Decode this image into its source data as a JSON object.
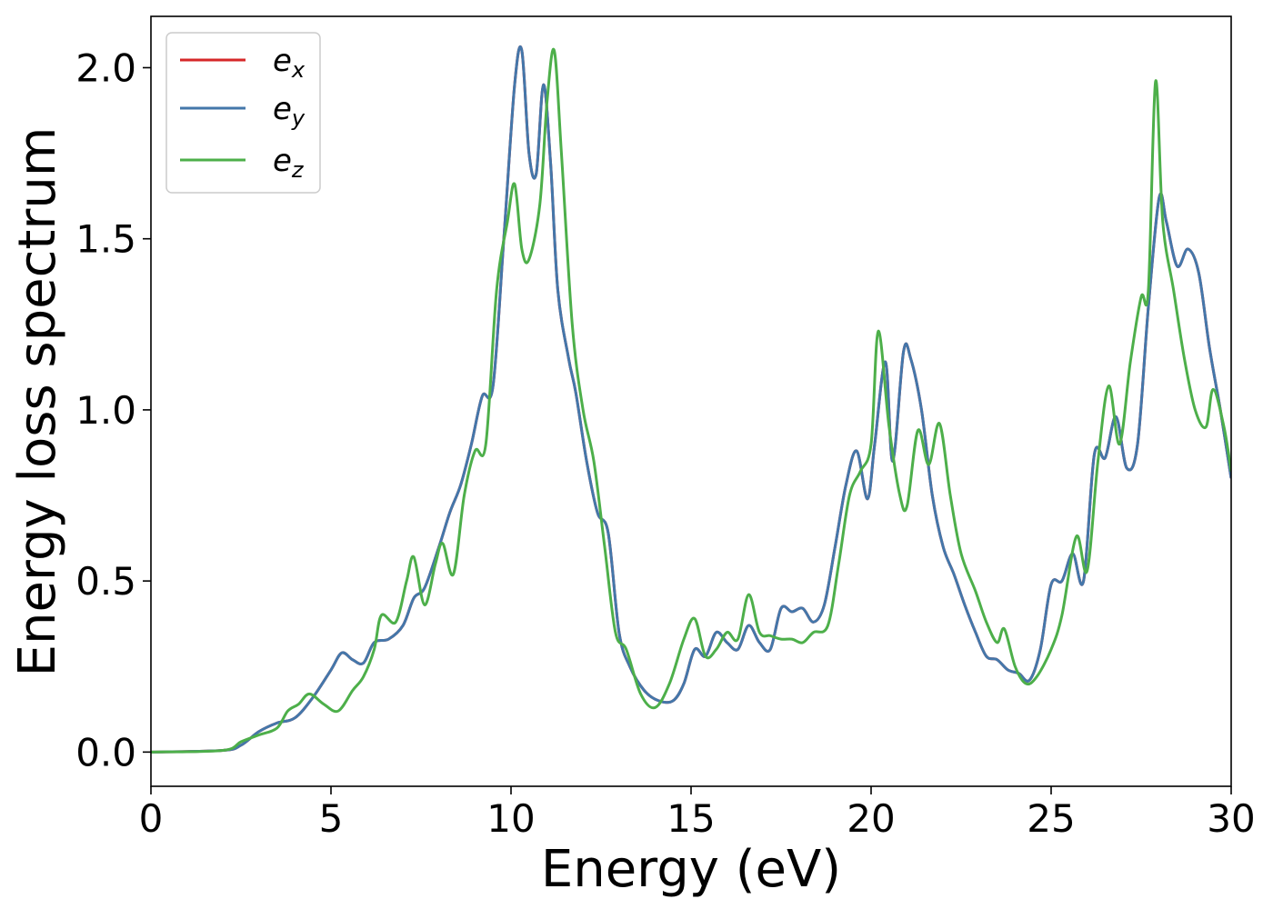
{
  "chart_data": {
    "type": "line",
    "title": "",
    "xlabel": "Energy (eV)",
    "ylabel": "Energy loss spectrum",
    "xlim": [
      0,
      30
    ],
    "ylim": [
      -0.1,
      2.15
    ],
    "xticks": [
      0,
      5,
      10,
      15,
      20,
      25,
      30
    ],
    "xtick_labels": [
      "0",
      "5",
      "10",
      "15",
      "20",
      "25",
      "30"
    ],
    "yticks": [
      0.0,
      0.5,
      1.0,
      1.5,
      2.0
    ],
    "ytick_labels": [
      "0.0",
      "0.5",
      "1.0",
      "1.5",
      "2.0"
    ],
    "grid": false,
    "legend_position": "top-left",
    "series": [
      {
        "name": "e_x",
        "label_base": "e",
        "label_sub": "x",
        "color": "#d62728",
        "x": [
          0,
          2,
          2.5,
          3,
          3.5,
          4,
          4.5,
          5,
          5.3,
          5.6,
          5.9,
          6.2,
          6.6,
          7,
          7.3,
          7.6,
          8,
          8.3,
          8.6,
          8.9,
          9.2,
          9.5,
          9.8,
          10.1,
          10.3,
          10.5,
          10.7,
          10.9,
          11.1,
          11.3,
          11.6,
          11.8,
          12.1,
          12.4,
          12.7,
          13,
          13.3,
          13.7,
          14.1,
          14.5,
          14.8,
          15.1,
          15.4,
          15.7,
          16,
          16.3,
          16.6,
          16.9,
          17.2,
          17.5,
          17.8,
          18.1,
          18.4,
          18.7,
          19,
          19.3,
          19.6,
          19.9,
          20.1,
          20.4,
          20.6,
          20.9,
          21.1,
          21.4,
          21.7,
          22,
          22.3,
          22.6,
          22.9,
          23.2,
          23.5,
          23.8,
          24.1,
          24.4,
          24.7,
          25,
          25.3,
          25.6,
          25.9,
          26.2,
          26.5,
          26.8,
          27.1,
          27.4,
          27.7,
          28,
          28.2,
          28.5,
          28.8,
          29.1,
          29.4,
          29.7,
          30
        ],
        "y": [
          0,
          0.005,
          0.02,
          0.06,
          0.085,
          0.1,
          0.16,
          0.24,
          0.29,
          0.27,
          0.26,
          0.32,
          0.33,
          0.37,
          0.45,
          0.48,
          0.6,
          0.7,
          0.78,
          0.9,
          1.04,
          1.07,
          1.5,
          1.95,
          2.05,
          1.75,
          1.69,
          1.95,
          1.72,
          1.35,
          1.15,
          1.05,
          0.85,
          0.7,
          0.64,
          0.35,
          0.25,
          0.18,
          0.15,
          0.15,
          0.2,
          0.3,
          0.28,
          0.35,
          0.32,
          0.3,
          0.37,
          0.32,
          0.3,
          0.42,
          0.41,
          0.42,
          0.38,
          0.43,
          0.6,
          0.78,
          0.88,
          0.74,
          0.9,
          1.14,
          0.85,
          1.17,
          1.15,
          1.0,
          0.75,
          0.6,
          0.52,
          0.43,
          0.35,
          0.28,
          0.27,
          0.24,
          0.23,
          0.21,
          0.3,
          0.49,
          0.5,
          0.58,
          0.5,
          0.87,
          0.86,
          0.98,
          0.83,
          0.9,
          1.3,
          1.62,
          1.55,
          1.42,
          1.47,
          1.4,
          1.18,
          1.0,
          0.8
        ]
      },
      {
        "name": "e_y",
        "label_base": "e",
        "label_sub": "y",
        "color": "#4477aa",
        "x": [
          0,
          2,
          2.5,
          3,
          3.5,
          4,
          4.5,
          5,
          5.3,
          5.6,
          5.9,
          6.2,
          6.6,
          7,
          7.3,
          7.6,
          8,
          8.3,
          8.6,
          8.9,
          9.2,
          9.5,
          9.8,
          10.1,
          10.3,
          10.5,
          10.7,
          10.9,
          11.1,
          11.3,
          11.6,
          11.8,
          12.1,
          12.4,
          12.7,
          13,
          13.3,
          13.7,
          14.1,
          14.5,
          14.8,
          15.1,
          15.4,
          15.7,
          16,
          16.3,
          16.6,
          16.9,
          17.2,
          17.5,
          17.8,
          18.1,
          18.4,
          18.7,
          19,
          19.3,
          19.6,
          19.9,
          20.1,
          20.4,
          20.6,
          20.9,
          21.1,
          21.4,
          21.7,
          22,
          22.3,
          22.6,
          22.9,
          23.2,
          23.5,
          23.8,
          24.1,
          24.4,
          24.7,
          25,
          25.3,
          25.6,
          25.9,
          26.2,
          26.5,
          26.8,
          27.1,
          27.4,
          27.7,
          28,
          28.2,
          28.5,
          28.8,
          29.1,
          29.4,
          29.7,
          30
        ],
        "y": [
          0,
          0.005,
          0.02,
          0.06,
          0.085,
          0.1,
          0.16,
          0.24,
          0.29,
          0.27,
          0.26,
          0.32,
          0.33,
          0.37,
          0.45,
          0.48,
          0.6,
          0.7,
          0.78,
          0.9,
          1.04,
          1.07,
          1.5,
          1.95,
          2.05,
          1.75,
          1.69,
          1.95,
          1.72,
          1.35,
          1.15,
          1.05,
          0.85,
          0.7,
          0.64,
          0.35,
          0.25,
          0.18,
          0.15,
          0.15,
          0.2,
          0.3,
          0.28,
          0.35,
          0.32,
          0.3,
          0.37,
          0.32,
          0.3,
          0.42,
          0.41,
          0.42,
          0.38,
          0.43,
          0.6,
          0.78,
          0.88,
          0.74,
          0.9,
          1.14,
          0.85,
          1.17,
          1.15,
          1.0,
          0.75,
          0.6,
          0.52,
          0.43,
          0.35,
          0.28,
          0.27,
          0.24,
          0.23,
          0.21,
          0.3,
          0.49,
          0.5,
          0.58,
          0.5,
          0.87,
          0.86,
          0.98,
          0.83,
          0.9,
          1.3,
          1.62,
          1.55,
          1.42,
          1.47,
          1.4,
          1.18,
          1.0,
          0.8
        ]
      },
      {
        "name": "e_z",
        "label_base": "e",
        "label_sub": "z",
        "color": "#4daf4a",
        "x": [
          0,
          2,
          2.5,
          3,
          3.5,
          3.8,
          4.1,
          4.4,
          4.8,
          5.2,
          5.6,
          5.9,
          6.2,
          6.4,
          6.8,
          7.1,
          7.3,
          7.6,
          7.9,
          8.1,
          8.4,
          8.7,
          9,
          9.3,
          9.6,
          9.9,
          10.1,
          10.3,
          10.5,
          10.8,
          11,
          11.2,
          11.4,
          11.7,
          12,
          12.3,
          12.6,
          12.9,
          13.2,
          13.6,
          14,
          14.4,
          14.8,
          15.1,
          15.4,
          15.7,
          16,
          16.3,
          16.6,
          16.9,
          17.2,
          17.5,
          17.8,
          18.1,
          18.4,
          18.8,
          19.1,
          19.4,
          19.7,
          20,
          20.2,
          20.5,
          20.8,
          21,
          21.3,
          21.6,
          21.9,
          22.2,
          22.5,
          22.9,
          23.2,
          23.5,
          23.7,
          24,
          24.3,
          24.6,
          25,
          25.3,
          25.7,
          26,
          26.3,
          26.6,
          26.9,
          27.2,
          27.5,
          27.7,
          27.9,
          28.1,
          28.4,
          28.7,
          29,
          29.3,
          29.5,
          29.8,
          30
        ],
        "y": [
          0,
          0.005,
          0.03,
          0.05,
          0.07,
          0.12,
          0.14,
          0.17,
          0.14,
          0.12,
          0.18,
          0.22,
          0.3,
          0.4,
          0.38,
          0.5,
          0.57,
          0.43,
          0.55,
          0.61,
          0.52,
          0.75,
          0.88,
          0.9,
          1.35,
          1.55,
          1.66,
          1.47,
          1.44,
          1.6,
          1.9,
          2.05,
          1.75,
          1.25,
          1.0,
          0.85,
          0.6,
          0.35,
          0.3,
          0.17,
          0.13,
          0.2,
          0.33,
          0.39,
          0.28,
          0.3,
          0.35,
          0.33,
          0.46,
          0.35,
          0.34,
          0.33,
          0.33,
          0.32,
          0.35,
          0.37,
          0.55,
          0.75,
          0.82,
          0.9,
          1.23,
          0.95,
          0.75,
          0.72,
          0.94,
          0.84,
          0.96,
          0.75,
          0.58,
          0.47,
          0.38,
          0.32,
          0.36,
          0.25,
          0.2,
          0.22,
          0.3,
          0.4,
          0.63,
          0.53,
          0.85,
          1.07,
          0.9,
          1.14,
          1.33,
          1.35,
          1.96,
          1.55,
          1.35,
          1.15,
          1.0,
          0.95,
          1.06,
          0.95,
          0.82
        ]
      }
    ]
  }
}
